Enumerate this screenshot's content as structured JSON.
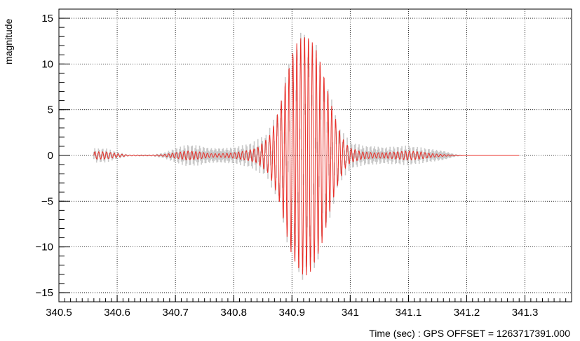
{
  "chart_data": {
    "type": "line",
    "title": "",
    "xlabel": "Time (sec) : GPS OFFSET = 1263717391.000",
    "ylabel": "magnitude",
    "xlim": [
      340.5,
      341.38
    ],
    "ylim": [
      -16,
      16
    ],
    "x_ticks": [
      340.5,
      340.6,
      340.7,
      340.8,
      340.9,
      341.0,
      341.1,
      341.2,
      341.3
    ],
    "x_tick_labels": [
      "340.5",
      "340.6",
      "340.7",
      "340.8",
      "340.9",
      "341",
      "341.1",
      "341.2",
      "341.3"
    ],
    "y_ticks": [
      -15,
      -10,
      -5,
      0,
      5,
      10,
      15
    ],
    "y_tick_labels": [
      "−15",
      "−10",
      "−5",
      "0",
      "5",
      "10",
      "15"
    ],
    "grid": true,
    "legend": "none",
    "series": [
      {
        "color": "#e8302a",
        "error_color": "#c8c8c8",
        "x": [
          340.56,
          340.58,
          340.6,
          340.62,
          340.64,
          340.66,
          340.68,
          340.7,
          340.72,
          340.74,
          340.76,
          340.78,
          340.8,
          340.82,
          340.84,
          340.86,
          340.87,
          340.88,
          340.89,
          340.9,
          340.91,
          340.92,
          340.93,
          340.94,
          340.95,
          340.96,
          340.97,
          340.98,
          340.99,
          341.0,
          341.02,
          341.04,
          341.06,
          341.08,
          341.1,
          341.12,
          341.14,
          341.16,
          341.18,
          341.2,
          341.24,
          341.29
        ],
        "envelope": [
          0.4,
          0.4,
          0.2,
          0.05,
          0.05,
          0.05,
          0.1,
          0.3,
          0.5,
          0.4,
          0.2,
          0.2,
          0.3,
          0.5,
          0.8,
          2.0,
          3.5,
          5.5,
          8.5,
          11.0,
          12.5,
          13.2,
          13.0,
          11.8,
          10.0,
          7.5,
          5.0,
          3.0,
          1.5,
          0.8,
          0.4,
          0.3,
          0.3,
          0.4,
          0.5,
          0.4,
          0.2,
          0.1,
          0.05,
          0.0,
          0.0,
          0.0
        ],
        "error_envelope": [
          0.4,
          0.4,
          0.2,
          0.05,
          0.05,
          0.05,
          0.2,
          0.5,
          0.7,
          0.7,
          0.6,
          0.6,
          0.6,
          0.7,
          0.9,
          0.8,
          0.7,
          0.7,
          0.6,
          0.6,
          0.6,
          0.6,
          0.6,
          0.6,
          0.6,
          0.6,
          0.7,
          0.7,
          0.8,
          0.8,
          0.7,
          0.7,
          0.6,
          0.6,
          0.6,
          0.5,
          0.5,
          0.4,
          0.1,
          0.0,
          0.0,
          0.0
        ],
        "oscillation_hz": 150
      }
    ]
  }
}
